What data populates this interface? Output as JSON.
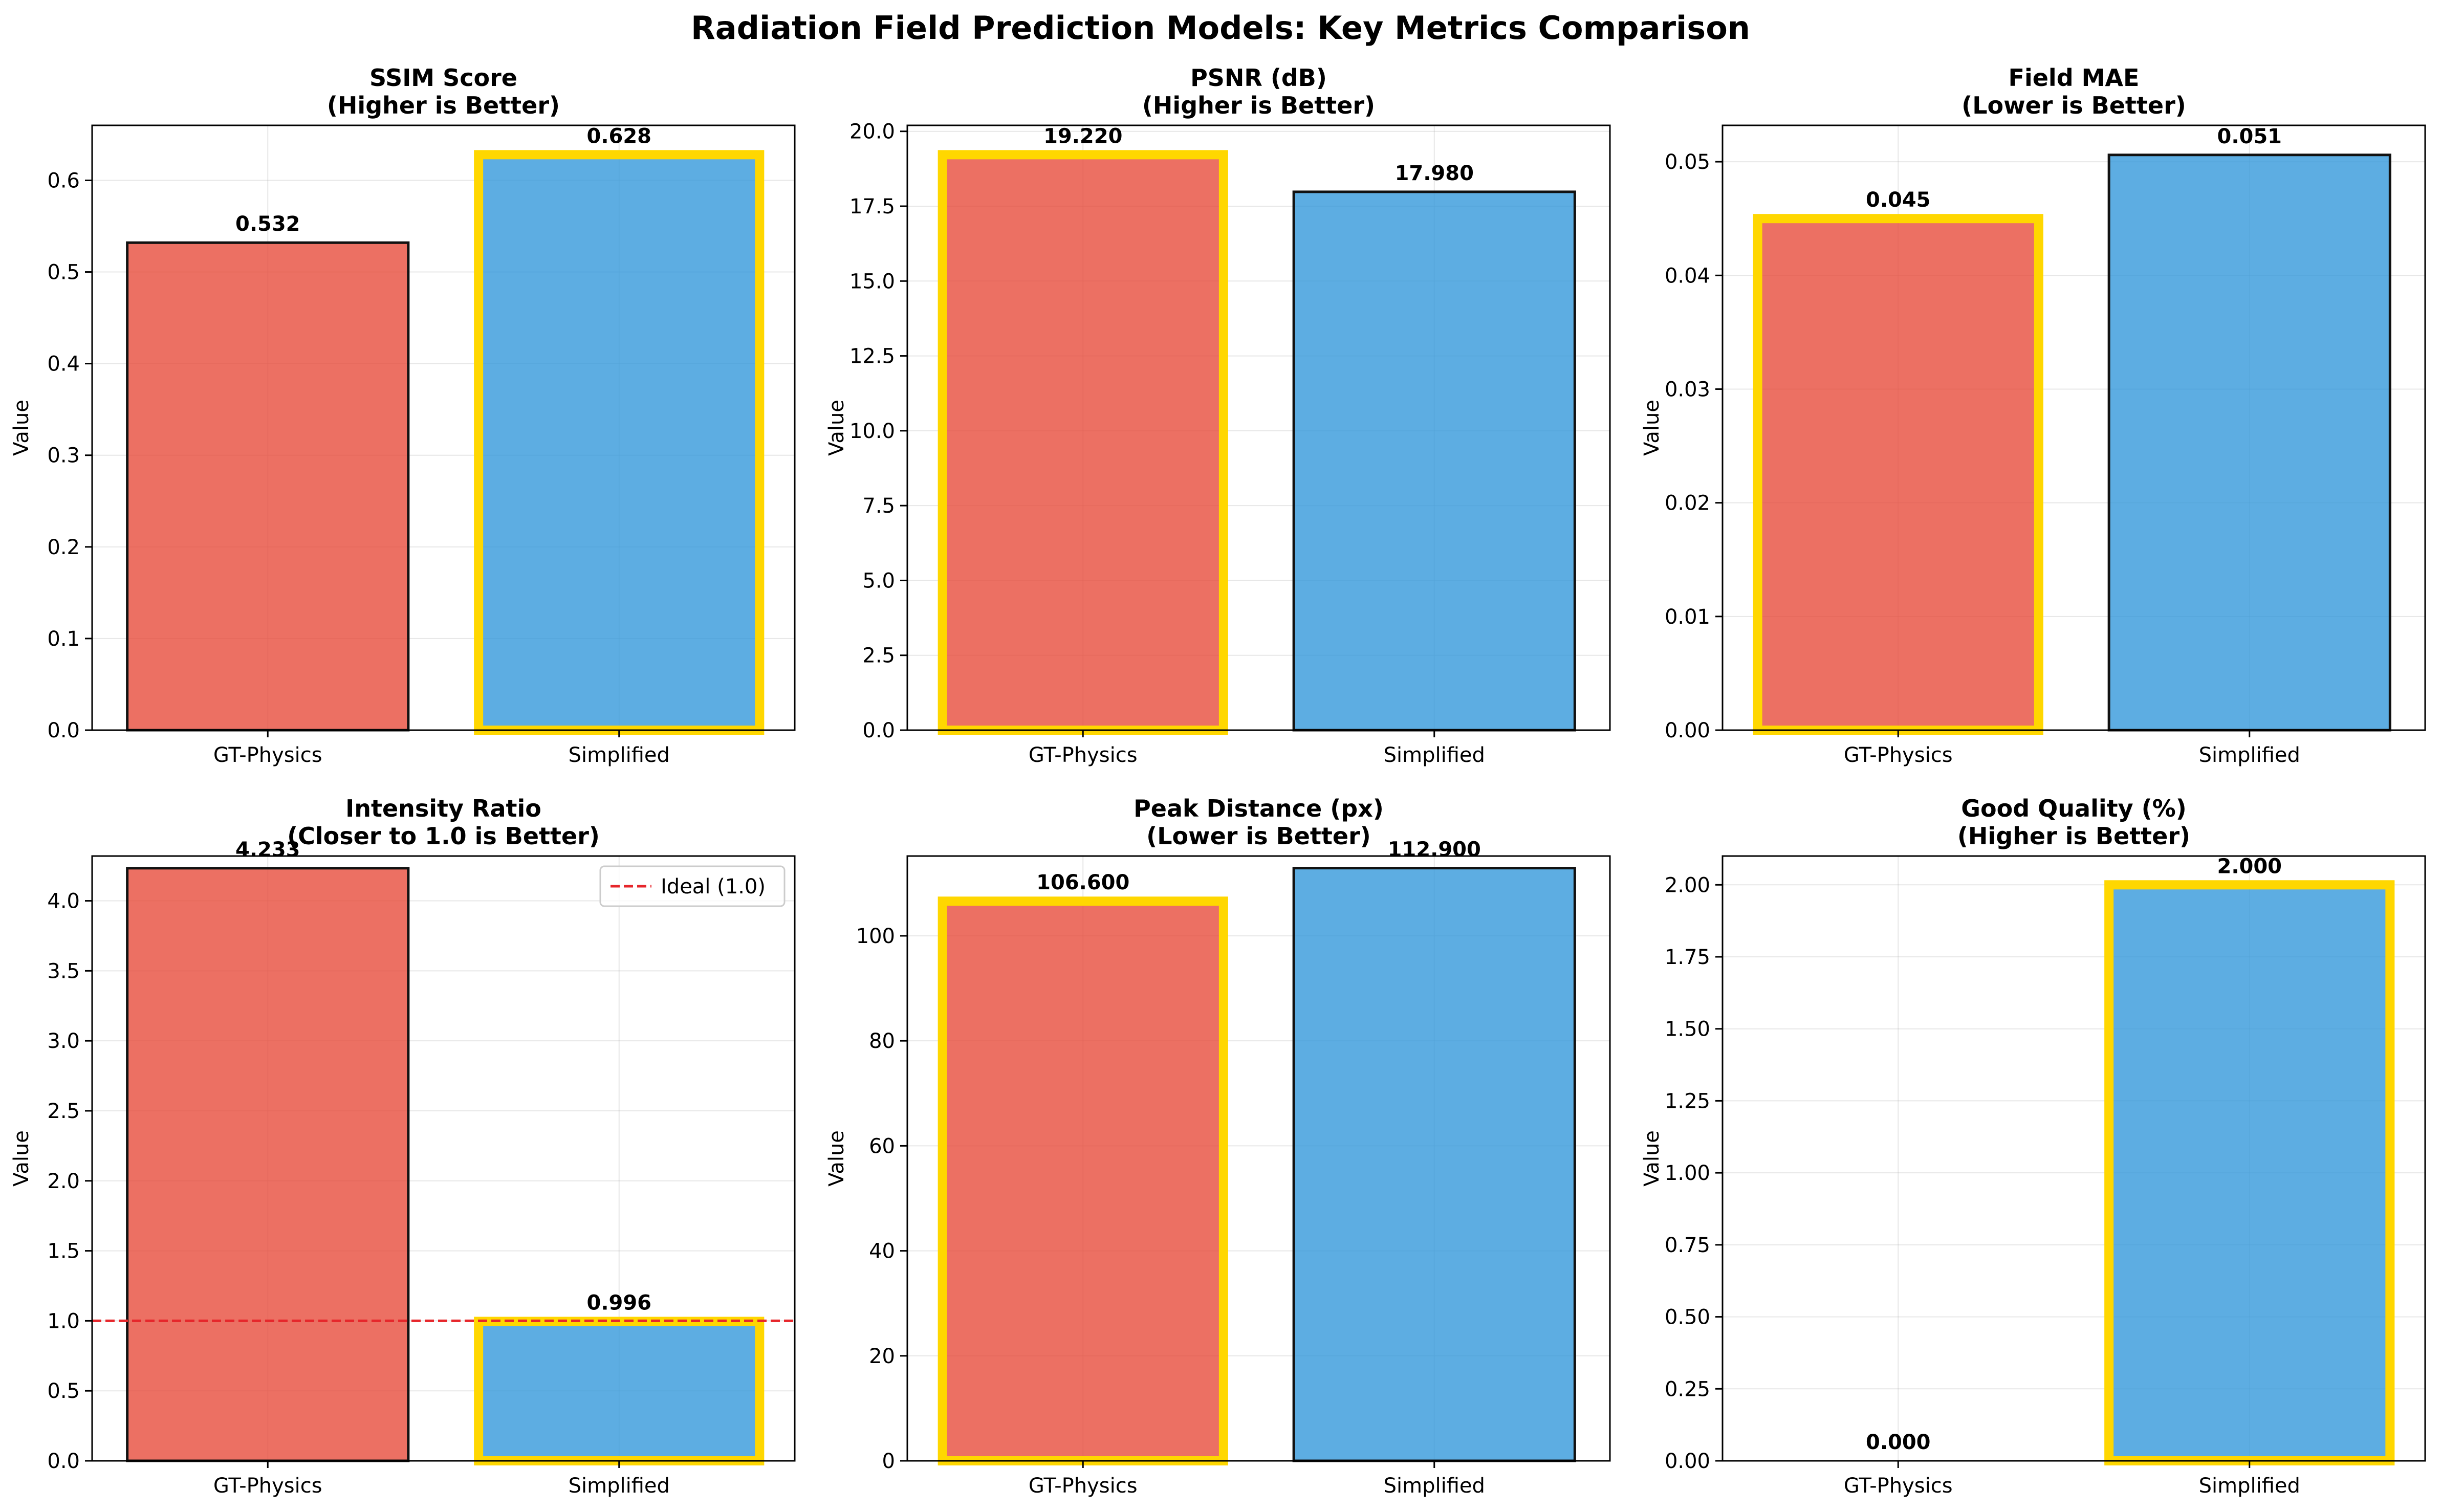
{
  "figure_title": "Radiation Field Prediction Models: Key Metrics Comparison",
  "colors": {
    "gt_physics": "#e74c3c",
    "simplified": "#3498db",
    "highlight": "#ffd700",
    "ideal_line": "#e6262b"
  },
  "chart_data": [
    {
      "type": "bar",
      "title": "SSIM Score\n(Higher is Better)",
      "categories": [
        "GT-Physics",
        "Simplified"
      ],
      "values": [
        0.532,
        0.628
      ],
      "value_labels": [
        "0.532",
        "0.628"
      ],
      "best_index": 1,
      "ylabel": "Value",
      "ylim": [
        0,
        0.66
      ],
      "yticks": [
        0.0,
        0.1,
        0.2,
        0.3,
        0.4,
        0.5,
        0.6
      ],
      "ytick_labels": [
        "0.0",
        "0.1",
        "0.2",
        "0.3",
        "0.4",
        "0.5",
        "0.6"
      ],
      "grid": true
    },
    {
      "type": "bar",
      "title": "PSNR (dB)\n(Higher is Better)",
      "categories": [
        "GT-Physics",
        "Simplified"
      ],
      "values": [
        19.22,
        17.98
      ],
      "value_labels": [
        "19.220",
        "17.980"
      ],
      "best_index": 0,
      "ylabel": "Value",
      "ylim": [
        0,
        20.2
      ],
      "yticks": [
        0.0,
        2.5,
        5.0,
        7.5,
        10.0,
        12.5,
        15.0,
        17.5,
        20.0
      ],
      "ytick_labels": [
        "0.0",
        "2.5",
        "5.0",
        "7.5",
        "10.0",
        "12.5",
        "15.0",
        "17.5",
        "20.0"
      ],
      "grid": true
    },
    {
      "type": "bar",
      "title": "Field MAE\n(Lower is Better)",
      "categories": [
        "GT-Physics",
        "Simplified"
      ],
      "values": [
        0.045,
        0.0506
      ],
      "value_labels": [
        "0.045",
        "0.051"
      ],
      "best_index": 0,
      "ylabel": "Value",
      "ylim": [
        0,
        0.0532
      ],
      "yticks": [
        0.0,
        0.01,
        0.02,
        0.03,
        0.04,
        0.05
      ],
      "ytick_labels": [
        "0.00",
        "0.01",
        "0.02",
        "0.03",
        "0.04",
        "0.05"
      ],
      "grid": true
    },
    {
      "type": "bar",
      "title": "Intensity Ratio\n(Closer to 1.0 is Better)",
      "categories": [
        "GT-Physics",
        "Simplified"
      ],
      "values": [
        4.233,
        0.996
      ],
      "value_labels": [
        "4.233",
        "0.996"
      ],
      "best_index": 1,
      "ylabel": "Value",
      "ylim": [
        0,
        4.32
      ],
      "yticks": [
        0.0,
        0.5,
        1.0,
        1.5,
        2.0,
        2.5,
        3.0,
        3.5,
        4.0
      ],
      "ytick_labels": [
        "0.0",
        "0.5",
        "1.0",
        "1.5",
        "2.0",
        "2.5",
        "3.0",
        "3.5",
        "4.0"
      ],
      "grid": true,
      "reference_line": {
        "value": 1.0,
        "label": "Ideal (1.0)"
      },
      "legend": "top-right"
    },
    {
      "type": "bar",
      "title": "Peak Distance (px)\n(Lower is Better)",
      "categories": [
        "GT-Physics",
        "Simplified"
      ],
      "values": [
        106.6,
        112.9
      ],
      "value_labels": [
        "106.600",
        "112.900"
      ],
      "best_index": 0,
      "ylabel": "Value",
      "ylim": [
        0,
        115.2
      ],
      "yticks": [
        0,
        20,
        40,
        60,
        80,
        100
      ],
      "ytick_labels": [
        "0",
        "20",
        "40",
        "60",
        "80",
        "100"
      ],
      "grid": true
    },
    {
      "type": "bar",
      "title": "Good Quality (%)\n(Higher is Better)",
      "categories": [
        "GT-Physics",
        "Simplified"
      ],
      "values": [
        0.0,
        2.0
      ],
      "value_labels": [
        "0.000",
        "2.000"
      ],
      "best_index": 1,
      "ylabel": "Value",
      "ylim": [
        0,
        2.1
      ],
      "yticks": [
        0.0,
        0.25,
        0.5,
        0.75,
        1.0,
        1.25,
        1.5,
        1.75,
        2.0
      ],
      "ytick_labels": [
        "0.00",
        "0.25",
        "0.50",
        "0.75",
        "1.00",
        "1.25",
        "1.50",
        "1.75",
        "2.00"
      ],
      "grid": true
    }
  ]
}
